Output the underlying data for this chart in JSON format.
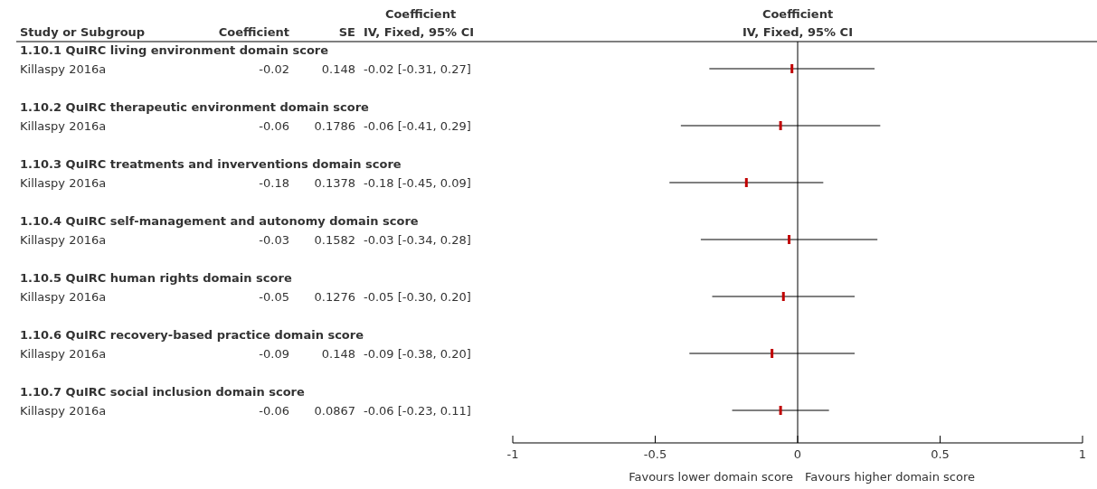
{
  "chart_data": {
    "type": "scatter",
    "orientation": "horizontal",
    "categories": [
      "1.10.1 QuIRC living environment domain score",
      "Killaspy 2016a",
      "1.10.2 QuIRC therapeutic environment domain score",
      "Killaspy 2016a",
      "1.10.3 QuIRC treatments and inverventions domain score",
      "Killaspy 2016a",
      "1.10.4 QuIRC self-management and autonomy domain score",
      "Killaspy 2016a",
      "1.10.5 QuIRC human rights domain score",
      "Killaspy 2016a",
      "1.10.6 QuIRC recovery-based practice domain score",
      "Killaspy 2016a",
      "1.10.7 QuIRC social inclusion domain score",
      "Killaspy 2016a"
    ],
    "series": [
      {
        "color": "#c00000",
        "values": [
          null,
          -0.02,
          null,
          -0.06,
          null,
          -0.18,
          null,
          -0.03,
          null,
          -0.05,
          null,
          -0.09,
          null,
          -0.06
        ],
        "errors": [
          null,
          [
            -0.31,
            0.27
          ],
          null,
          [
            -0.41,
            0.29
          ],
          null,
          [
            -0.45,
            0.09
          ],
          null,
          [
            -0.34,
            0.28
          ],
          null,
          [
            -0.3,
            0.2
          ],
          null,
          [
            -0.38,
            0.2
          ],
          null,
          [
            -0.23,
            0.11
          ]
        ],
        "value_labels": [
          null,
          "-0.02 [-0.31, 0.27]",
          null,
          "-0.06 [-0.41, 0.29]",
          null,
          "-0.18 [-0.45, 0.09]",
          null,
          "-0.03 [-0.34, 0.28]",
          null,
          "-0.05 [-0.30, 0.20]",
          null,
          "-0.09 [-0.38, 0.20]",
          null,
          "-0.06 [-0.23, 0.11]"
        ]
      }
    ],
    "xlim": [
      -1,
      1
    ],
    "xticks": [
      -1,
      -0.5,
      0,
      0.5,
      1
    ],
    "grid": false,
    "ref_lines": [
      {
        "axis": "x",
        "value": 0
      }
    ],
    "annotations": [
      "Study or Subgroup",
      "Coefficient",
      "SE",
      "Coefficient IV, Fixed, 95% CI",
      "Coefficient IV, Fixed, 95% CI",
      "Favours lower domain score",
      "Favours higher domain score",
      "-0.02",
      "0.148",
      "-0.06",
      "0.1786",
      "-0.18",
      "0.1378",
      "-0.03",
      "0.1582",
      "-0.05",
      "0.1276",
      "-0.09",
      "0.148",
      "-0.06",
      "0.0867"
    ]
  }
}
